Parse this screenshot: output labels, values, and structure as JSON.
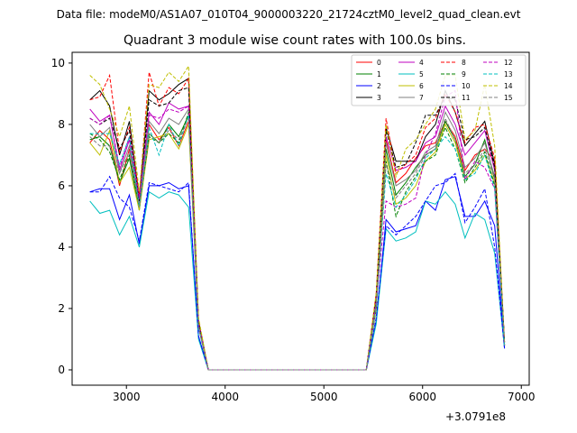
{
  "chart_data": {
    "type": "line",
    "suptitle": "Data file: modeM0/AS1A07_010T04_9000003220_21724cztM0_level2_quad_clean.evt",
    "title": "Quadrant 3 module wise count rates with 100.0s bins.",
    "xlabel": "",
    "ylabel": "",
    "x_offset_label": "+3.0791e8",
    "xlim": [
      2450,
      7080
    ],
    "ylim": [
      -0.5,
      10.35
    ],
    "xticks": [
      3000,
      4000,
      5000,
      6000,
      7000
    ],
    "yticks": [
      0,
      2,
      4,
      6,
      8,
      10
    ],
    "grid": false,
    "legend_position": "top-right",
    "legend_columns": 4,
    "x": [
      2630,
      2730,
      2830,
      2930,
      3030,
      3130,
      3230,
      3330,
      3430,
      3530,
      3630,
      3730,
      3830,
      3930,
      4030,
      4130,
      4230,
      4330,
      4430,
      4530,
      4630,
      4730,
      4830,
      4930,
      5030,
      5130,
      5230,
      5330,
      5430,
      5530,
      5630,
      5730,
      5830,
      5930,
      6030,
      6130,
      6230,
      6330,
      6430,
      6530,
      6630,
      6730,
      6830
    ],
    "series": [
      {
        "name": "0",
        "color": "#ff0000",
        "dash": "solid",
        "values": [
          7.4,
          7.8,
          7.5,
          6.0,
          7.2,
          5.4,
          8.0,
          7.5,
          7.9,
          7.3,
          8.1,
          1.5,
          0,
          0,
          0,
          0,
          0,
          0,
          0,
          0,
          0,
          0,
          0,
          0,
          0,
          0,
          0,
          0,
          0,
          2.2,
          7.5,
          6.1,
          6.4,
          6.9,
          7.3,
          7.4,
          8.1,
          7.6,
          6.5,
          7.0,
          7.2,
          6.8,
          0.8
        ]
      },
      {
        "name": "1",
        "color": "#008000",
        "dash": "solid",
        "values": [
          7.5,
          7.6,
          7.3,
          6.1,
          6.9,
          5.2,
          7.7,
          7.4,
          8.0,
          7.6,
          8.3,
          1.4,
          0,
          0,
          0,
          0,
          0,
          0,
          0,
          0,
          0,
          0,
          0,
          0,
          0,
          0,
          0,
          0,
          0,
          2.1,
          7.2,
          5.7,
          6.1,
          6.6,
          7.0,
          7.2,
          8.1,
          7.5,
          6.3,
          6.7,
          7.5,
          6.2,
          0.8
        ]
      },
      {
        "name": "2",
        "color": "#0000ff",
        "dash": "solid",
        "values": [
          5.8,
          5.9,
          5.9,
          4.9,
          5.7,
          4.1,
          6.0,
          6.0,
          6.1,
          5.9,
          6.0,
          1.1,
          0,
          0,
          0,
          0,
          0,
          0,
          0,
          0,
          0,
          0,
          0,
          0,
          0,
          0,
          0,
          0,
          0,
          1.6,
          4.9,
          4.5,
          4.6,
          4.7,
          5.5,
          5.2,
          6.2,
          6.3,
          5.0,
          5.0,
          5.5,
          4.7,
          0.7
        ]
      },
      {
        "name": "3",
        "color": "#000000",
        "dash": "solid",
        "values": [
          8.8,
          9.1,
          8.6,
          7.0,
          8.1,
          5.6,
          9.1,
          8.8,
          9.0,
          9.3,
          9.5,
          1.6,
          0,
          0,
          0,
          0,
          0,
          0,
          0,
          0,
          0,
          0,
          0,
          0,
          0,
          0,
          0,
          0,
          0,
          2.4,
          7.9,
          6.8,
          6.8,
          6.8,
          7.6,
          8.0,
          9.1,
          8.4,
          7.3,
          7.7,
          8.1,
          6.7,
          0.9
        ]
      },
      {
        "name": "4",
        "color": "#bf00bf",
        "dash": "solid",
        "values": [
          8.5,
          8.1,
          8.3,
          6.5,
          7.5,
          5.5,
          8.4,
          8.0,
          8.7,
          8.5,
          8.6,
          1.5,
          0,
          0,
          0,
          0,
          0,
          0,
          0,
          0,
          0,
          0,
          0,
          0,
          0,
          0,
          0,
          0,
          0,
          2.3,
          7.6,
          6.5,
          6.6,
          6.8,
          7.4,
          7.6,
          8.6,
          8.0,
          7.0,
          7.4,
          7.8,
          6.5,
          0.9
        ]
      },
      {
        "name": "5",
        "color": "#00bfbf",
        "dash": "solid",
        "values": [
          5.5,
          5.1,
          5.2,
          4.4,
          5.0,
          4.0,
          5.8,
          5.6,
          5.8,
          5.7,
          5.3,
          1.0,
          0,
          0,
          0,
          0,
          0,
          0,
          0,
          0,
          0,
          0,
          0,
          0,
          0,
          0,
          0,
          0,
          0,
          1.5,
          4.6,
          4.2,
          4.3,
          4.5,
          5.5,
          5.4,
          5.8,
          5.4,
          4.3,
          5.1,
          4.9,
          3.8,
          0.7
        ]
      },
      {
        "name": "6",
        "color": "#bfbf00",
        "dash": "solid",
        "values": [
          7.4,
          7.0,
          7.8,
          6.1,
          6.6,
          5.2,
          7.5,
          7.6,
          7.7,
          7.2,
          8.0,
          1.4,
          0,
          0,
          0,
          0,
          0,
          0,
          0,
          0,
          0,
          0,
          0,
          0,
          0,
          0,
          0,
          0,
          0,
          2.0,
          7.0,
          5.4,
          5.6,
          6.0,
          6.8,
          7.1,
          8.0,
          7.4,
          6.2,
          6.5,
          7.0,
          6.1,
          0.8
        ]
      },
      {
        "name": "7",
        "color": "#808080",
        "dash": "solid",
        "values": [
          8.0,
          7.6,
          7.9,
          6.4,
          7.3,
          5.4,
          8.1,
          7.7,
          8.2,
          8.0,
          8.5,
          1.5,
          0,
          0,
          0,
          0,
          0,
          0,
          0,
          0,
          0,
          0,
          0,
          0,
          0,
          0,
          0,
          0,
          0,
          2.2,
          7.4,
          6.0,
          6.2,
          6.5,
          7.1,
          7.3,
          8.4,
          7.8,
          6.6,
          6.9,
          7.4,
          6.3,
          0.8
        ]
      },
      {
        "name": "8",
        "color": "#ff0000",
        "dash": "dashed",
        "values": [
          8.8,
          8.9,
          9.6,
          7.1,
          7.9,
          5.7,
          9.7,
          8.6,
          9.2,
          9.0,
          9.5,
          1.6,
          0,
          0,
          0,
          0,
          0,
          0,
          0,
          0,
          0,
          0,
          0,
          0,
          0,
          0,
          0,
          0,
          0,
          2.5,
          8.2,
          6.4,
          6.7,
          7.0,
          7.9,
          8.2,
          9.0,
          8.4,
          7.4,
          7.9,
          8.0,
          6.9,
          0.9
        ]
      },
      {
        "name": "9",
        "color": "#008000",
        "dash": "dashed",
        "values": [
          7.7,
          7.5,
          7.1,
          6.2,
          7.0,
          5.3,
          7.6,
          7.4,
          7.7,
          7.4,
          8.4,
          1.4,
          0,
          0,
          0,
          0,
          0,
          0,
          0,
          0,
          0,
          0,
          0,
          0,
          0,
          0,
          0,
          0,
          0,
          2.0,
          6.8,
          5.0,
          5.8,
          6.3,
          6.8,
          7.0,
          7.9,
          7.2,
          6.1,
          6.6,
          7.1,
          6.0,
          0.8
        ]
      },
      {
        "name": "10",
        "color": "#0000ff",
        "dash": "dashed",
        "values": [
          5.8,
          5.8,
          6.3,
          5.6,
          5.3,
          4.2,
          6.1,
          6.0,
          5.9,
          5.8,
          6.1,
          1.1,
          0,
          0,
          0,
          0,
          0,
          0,
          0,
          0,
          0,
          0,
          0,
          0,
          0,
          0,
          0,
          0,
          0,
          1.7,
          4.7,
          4.4,
          4.7,
          5.0,
          5.5,
          6.0,
          6.1,
          6.4,
          4.8,
          5.3,
          5.9,
          4.0,
          0.7
        ]
      },
      {
        "name": "11",
        "color": "#000000",
        "dash": "dashed",
        "values": [
          8.2,
          8.0,
          8.2,
          7.2,
          7.8,
          5.5,
          8.8,
          8.6,
          8.7,
          9.1,
          9.2,
          1.6,
          0,
          0,
          0,
          0,
          0,
          0,
          0,
          0,
          0,
          0,
          0,
          0,
          0,
          0,
          0,
          0,
          0,
          2.4,
          7.8,
          6.6,
          6.7,
          7.4,
          8.3,
          8.3,
          8.9,
          8.8,
          7.5,
          7.6,
          7.9,
          6.6,
          0.9
        ]
      },
      {
        "name": "12",
        "color": "#bf00bf",
        "dash": "dashed",
        "values": [
          8.2,
          8.0,
          8.3,
          6.6,
          7.6,
          5.6,
          8.3,
          8.2,
          8.5,
          8.4,
          8.6,
          1.5,
          0,
          0,
          0,
          0,
          0,
          0,
          0,
          0,
          0,
          0,
          0,
          0,
          0,
          0,
          0,
          0,
          0,
          2.2,
          5.5,
          5.3,
          5.4,
          5.6,
          7.0,
          7.7,
          8.9,
          9.1,
          6.2,
          6.8,
          6.6,
          5.9,
          0.8
        ]
      },
      {
        "name": "13",
        "color": "#00bfbf",
        "dash": "dashed",
        "values": [
          7.7,
          7.7,
          7.7,
          6.7,
          7.6,
          5.3,
          7.9,
          7.0,
          8.0,
          7.3,
          8.3,
          1.4,
          0,
          0,
          0,
          0,
          0,
          0,
          0,
          0,
          0,
          0,
          0,
          0,
          0,
          0,
          0,
          0,
          0,
          2.1,
          6.4,
          5.3,
          5.7,
          6.2,
          6.9,
          7.2,
          7.6,
          7.2,
          6.2,
          6.4,
          7.0,
          5.9,
          0.8
        ]
      },
      {
        "name": "14",
        "color": "#bfbf00",
        "dash": "dashed",
        "values": [
          9.6,
          9.3,
          8.5,
          7.6,
          8.6,
          5.8,
          9.3,
          9.2,
          9.7,
          9.4,
          9.9,
          1.7,
          0,
          0,
          0,
          0,
          0,
          0,
          0,
          0,
          0,
          0,
          0,
          0,
          0,
          0,
          0,
          0,
          0,
          2.5,
          8.0,
          6.3,
          7.2,
          7.5,
          8.0,
          8.5,
          9.6,
          9.6,
          7.5,
          7.8,
          9.3,
          7.3,
          0.9
        ]
      },
      {
        "name": "15",
        "color": "#808080",
        "dash": "dashed",
        "values": [
          7.6,
          7.3,
          7.3,
          6.4,
          7.1,
          5.3,
          7.7,
          7.4,
          7.8,
          7.5,
          8.2,
          1.4,
          0,
          0,
          0,
          0,
          0,
          0,
          0,
          0,
          0,
          0,
          0,
          0,
          0,
          0,
          0,
          0,
          0,
          2.1,
          6.7,
          5.6,
          6.0,
          6.4,
          7.0,
          7.2,
          8.2,
          7.5,
          6.4,
          6.7,
          7.2,
          6.2,
          0.8
        ]
      }
    ]
  }
}
